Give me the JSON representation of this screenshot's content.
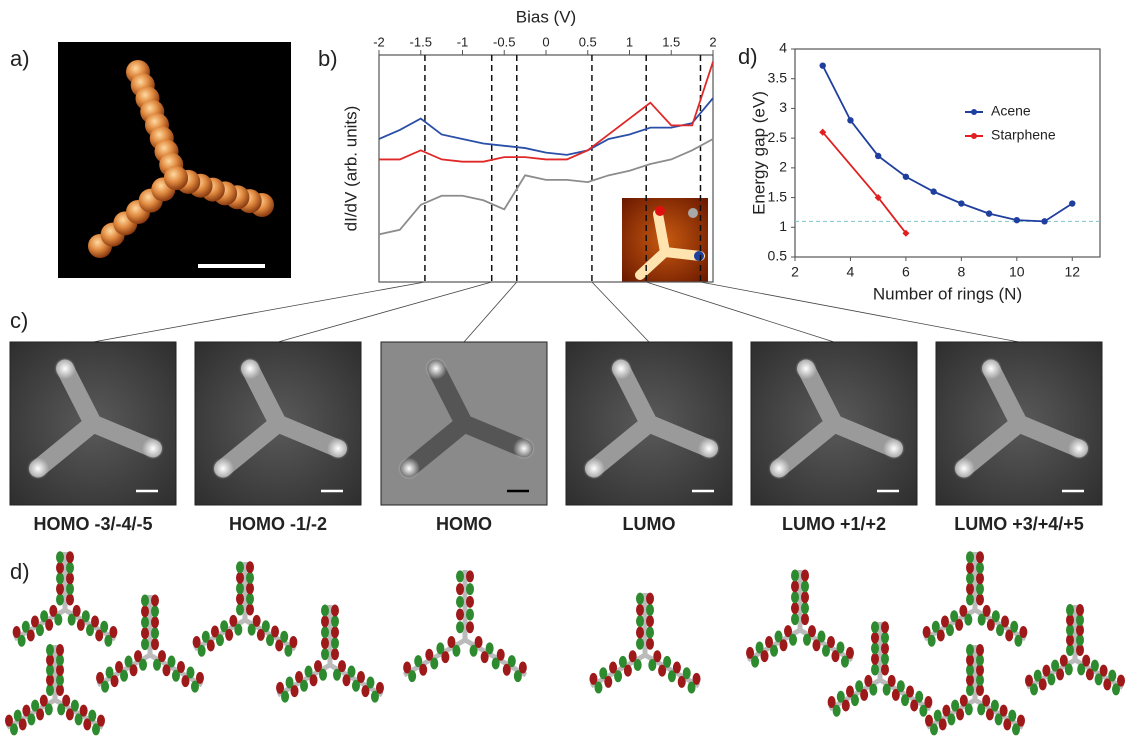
{
  "panel_labels": [
    "a)",
    "b)",
    "c)",
    "d)",
    "d)"
  ],
  "chart_data": [
    {
      "type": "line",
      "x_label": "Bias (V)",
      "y_label": "dI/dV (arb. units)",
      "x": [
        -2,
        -1.75,
        -1.5,
        -1.25,
        -1,
        -0.75,
        -0.5,
        -0.25,
        0,
        0.25,
        0.5,
        0.75,
        1,
        1.25,
        1.5,
        1.75,
        2
      ],
      "xlim": [
        -2,
        2
      ],
      "xticks": [
        -2,
        -1.5,
        -1,
        -0.5,
        0,
        0.5,
        1,
        1.5,
        2
      ],
      "ylim": [
        0,
        10
      ],
      "markers": [
        -1.45,
        -0.65,
        -0.35,
        0.55,
        1.2,
        1.85
      ],
      "series": [
        {
          "color": "#2a4fa8",
          "values": [
            6.3,
            6.7,
            7.2,
            6.5,
            6.3,
            6.1,
            6.0,
            5.9,
            5.7,
            5.6,
            5.8,
            6.3,
            6.5,
            6.8,
            6.8,
            7.0,
            8.1
          ]
        },
        {
          "color": "#e02828",
          "values": [
            5.4,
            5.4,
            5.8,
            5.4,
            5.3,
            5.3,
            5.5,
            5.5,
            5.4,
            5.4,
            5.8,
            6.5,
            7.2,
            7.9,
            6.9,
            6.9,
            9.7
          ]
        },
        {
          "color": "#8c8c8c",
          "values": [
            2.1,
            2.3,
            3.4,
            3.8,
            3.8,
            3.6,
            3.2,
            4.7,
            4.5,
            4.5,
            4.4,
            4.7,
            4.9,
            5.2,
            5.4,
            5.8,
            6.3
          ]
        }
      ]
    },
    {
      "type": "line",
      "x_label": "Number of rings (N)",
      "y_label": "Energy gap (eV)",
      "xlim": [
        2,
        13
      ],
      "xticks": [
        2,
        4,
        6,
        8,
        10,
        12
      ],
      "ylim": [
        0.5,
        4
      ],
      "yticks": [
        0.5,
        1,
        1.5,
        2,
        2.5,
        3,
        3.5,
        4
      ],
      "hline": 1.1,
      "legend": "upper-right",
      "series": [
        {
          "name": "Acene",
          "color": "#1f3f9f",
          "x": [
            3,
            4,
            5,
            6,
            7,
            8,
            9,
            10,
            11,
            12
          ],
          "values": [
            3.72,
            2.8,
            2.2,
            1.85,
            1.6,
            1.4,
            1.23,
            1.12,
            1.1,
            1.4
          ]
        },
        {
          "name": "Starphene",
          "color": "#e02020",
          "x": [
            3,
            5,
            6
          ],
          "values": [
            2.6,
            1.5,
            0.9
          ]
        }
      ]
    }
  ],
  "images": [
    {
      "label": "HOMO -3/-4/-5"
    },
    {
      "label": "HOMO -1/-2"
    },
    {
      "label": "HOMO"
    },
    {
      "label": "LUMO"
    },
    {
      "label": "LUMO +1/+2"
    },
    {
      "label": "LUMO +3/+4/+5"
    }
  ]
}
